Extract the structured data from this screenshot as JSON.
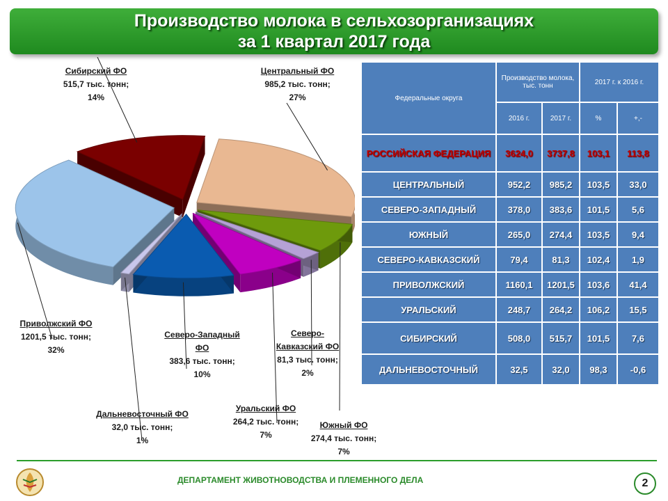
{
  "title": {
    "line1": "Производство молока в сельхозорганизациях",
    "line2": "за 1 квартал 2017 года"
  },
  "chart_data": {
    "type": "pie",
    "slices": [
      {
        "name": "Центральный  ФО",
        "value": 985.2,
        "value_text": "985,2 тыс. тонн;",
        "pct": "27%",
        "color": "#e9b892"
      },
      {
        "name": "Южный ФО",
        "value": 274.4,
        "value_text": "274,4 тыс. тонн;",
        "pct": "7%",
        "color": "#6e9a0c"
      },
      {
        "name": "Северо-Кавказский  ФО",
        "value": 81.3,
        "value_text": "81,3 тыс. тонн;",
        "pct": "2%",
        "color": "#b5a1d6"
      },
      {
        "name": "Уральский  ФО",
        "value": 264.2,
        "value_text": "264,2 тыс. тонн;",
        "pct": "7%",
        "color": "#c000c0"
      },
      {
        "name": "Северо-Западный ФО",
        "value": 383.6,
        "value_text": "383,6 тыс. тонн;",
        "pct": "10%",
        "color": "#0a5bb0"
      },
      {
        "name": "Дальневосточный ФО",
        "value": 32.0,
        "value_text": "32,0 тыс. тонн;",
        "pct": "1%",
        "color": "#c9c7ec"
      },
      {
        "name": "Приволжский ФО",
        "value": 1201.5,
        "value_text": "1201,5 тыс. тонн;",
        "pct": "32%",
        "color": "#9cc4ea"
      },
      {
        "name": "Сибирский  ФО",
        "value": 515.7,
        "value_text": "515,7 тыс. тонн;",
        "pct": "14%",
        "color": "#7a0000"
      }
    ]
  },
  "table": {
    "header_district": "Федеральные округа",
    "header_production": "Производство молока, тыс. тонн",
    "header_change": "2017 г. к 2016 г.",
    "sub_2016": "2016 г.",
    "sub_2017": "2017 г.",
    "sub_pct": "%",
    "sub_diff": "+,-",
    "rows": [
      {
        "name": "РОССИЙСКАЯ ФЕДЕРАЦИЯ",
        "v2016": "3624,0",
        "v2017": "3737,8",
        "pct": "103,1",
        "diff": "113,8"
      },
      {
        "name": "ЦЕНТРАЛЬНЫЙ",
        "v2016": "952,2",
        "v2017": "985,2",
        "pct": "103,5",
        "diff": "33,0"
      },
      {
        "name": "СЕВЕРО-ЗАПАДНЫЙ",
        "v2016": "378,0",
        "v2017": "383,6",
        "pct": "101,5",
        "diff": "5,6"
      },
      {
        "name": "ЮЖНЫЙ",
        "v2016": "265,0",
        "v2017": "274,4",
        "pct": "103,5",
        "diff": "9,4"
      },
      {
        "name": "СЕВЕРО-КАВКАЗСКИЙ",
        "v2016": "79,4",
        "v2017": "81,3",
        "pct": "102,4",
        "diff": "1,9"
      },
      {
        "name": "ПРИВОЛЖСКИЙ",
        "v2016": "1160,1",
        "v2017": "1201,5",
        "pct": "103,6",
        "diff": "41,4"
      },
      {
        "name": "УРАЛЬСКИЙ",
        "v2016": "248,7",
        "v2017": "264,2",
        "pct": "106,2",
        "diff": "15,5"
      },
      {
        "name": "СИБИРСКИЙ",
        "v2016": "508,0",
        "v2017": "515,7",
        "pct": "101,5",
        "diff": "7,6"
      },
      {
        "name": "ДАЛЬНЕВОСТОЧНЫЙ",
        "v2016": "32,5",
        "v2017": "32,0",
        "pct": "98,3",
        "diff": "-0,6"
      }
    ]
  },
  "footer": {
    "department": "ДЕПАРТАМЕНТ ЖИВОТНОВОДСТВА И ПЛЕМЕННОГО ДЕЛА",
    "page": "2"
  },
  "colors": {
    "title_green": "#2a9d2a",
    "table_blue": "#4e7fbb",
    "rf_red": "#c00000"
  }
}
